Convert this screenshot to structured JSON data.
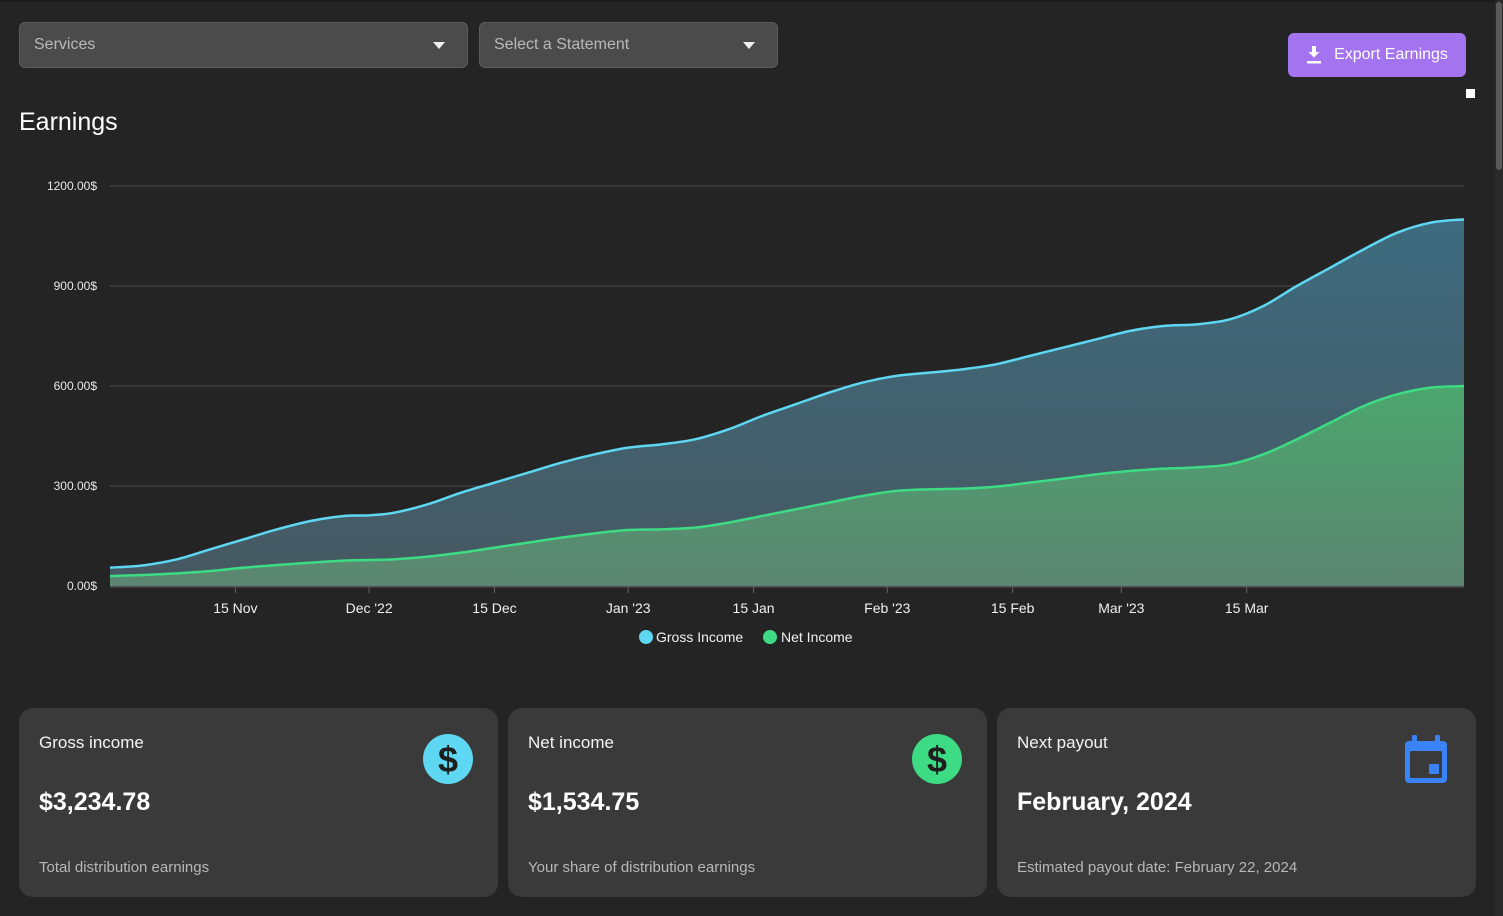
{
  "filters": {
    "services": {
      "placeholder": "Services"
    },
    "statement": {
      "placeholder": "Select a Statement"
    }
  },
  "toolbar": {
    "export_label": "Export Earnings",
    "export_icon": "download-icon"
  },
  "colors": {
    "accent": "#a373f0",
    "gross": "#5ed7f2",
    "net": "#3ddc84",
    "calendar": "#3b82f6"
  },
  "page": {
    "title": "Earnings"
  },
  "chart_data": {
    "type": "area",
    "title": "Earnings",
    "xlabel": "",
    "ylabel": "",
    "ylim": [
      0,
      1200
    ],
    "y_ticks": [
      "0.00$",
      "300.00$",
      "600.00$",
      "900.00$",
      "1200.00$"
    ],
    "y_tick_values": [
      0,
      300,
      600,
      900,
      1200
    ],
    "x_ticks": [
      "15 Nov",
      "Dec '22",
      "15 Dec",
      "Jan '23",
      "15 Jan",
      "Feb '23",
      "15 Feb",
      "Mar '23",
      "15 Mar"
    ],
    "x_tick_days": [
      15,
      31,
      46,
      62,
      77,
      93,
      108,
      121,
      136
    ],
    "grid": true,
    "legend": "bottom-center",
    "x_days": [
      0,
      4,
      8,
      12,
      16,
      20,
      24,
      28,
      31,
      34,
      38,
      42,
      46,
      50,
      54,
      58,
      62,
      66,
      70,
      74,
      78,
      82,
      86,
      90,
      94,
      98,
      102,
      106,
      110,
      114,
      118,
      122,
      126,
      130,
      134,
      138,
      142,
      146,
      150,
      154,
      158,
      162
    ],
    "series": [
      {
        "name": "Gross Income",
        "values": [
          55,
          62,
          80,
          110,
          140,
          170,
          195,
          210,
          212,
          220,
          245,
          280,
          310,
          340,
          370,
          395,
          415,
          425,
          440,
          470,
          510,
          545,
          580,
          610,
          630,
          640,
          650,
          665,
          690,
          715,
          740,
          765,
          780,
          785,
          800,
          840,
          900,
          955,
          1010,
          1060,
          1090,
          1100
        ]
      },
      {
        "name": "Net Income",
        "values": [
          30,
          33,
          38,
          45,
          55,
          63,
          70,
          76,
          78,
          80,
          88,
          100,
          115,
          130,
          145,
          158,
          168,
          170,
          175,
          190,
          210,
          230,
          250,
          270,
          285,
          290,
          292,
          298,
          310,
          322,
          335,
          345,
          352,
          356,
          365,
          395,
          440,
          490,
          540,
          575,
          595,
          600
        ]
      }
    ]
  },
  "cards": {
    "gross": {
      "title": "Gross income",
      "value": "$3,234.78",
      "subtitle": "Total distribution earnings",
      "icon": "dollar-icon"
    },
    "net": {
      "title": "Net income",
      "value": "$1,534.75",
      "subtitle": "Your share of distribution earnings",
      "icon": "dollar-icon"
    },
    "payout": {
      "title": "Next payout",
      "value": "February, 2024",
      "subtitle": "Estimated payout date: February 22, 2024",
      "icon": "calendar-icon"
    }
  }
}
